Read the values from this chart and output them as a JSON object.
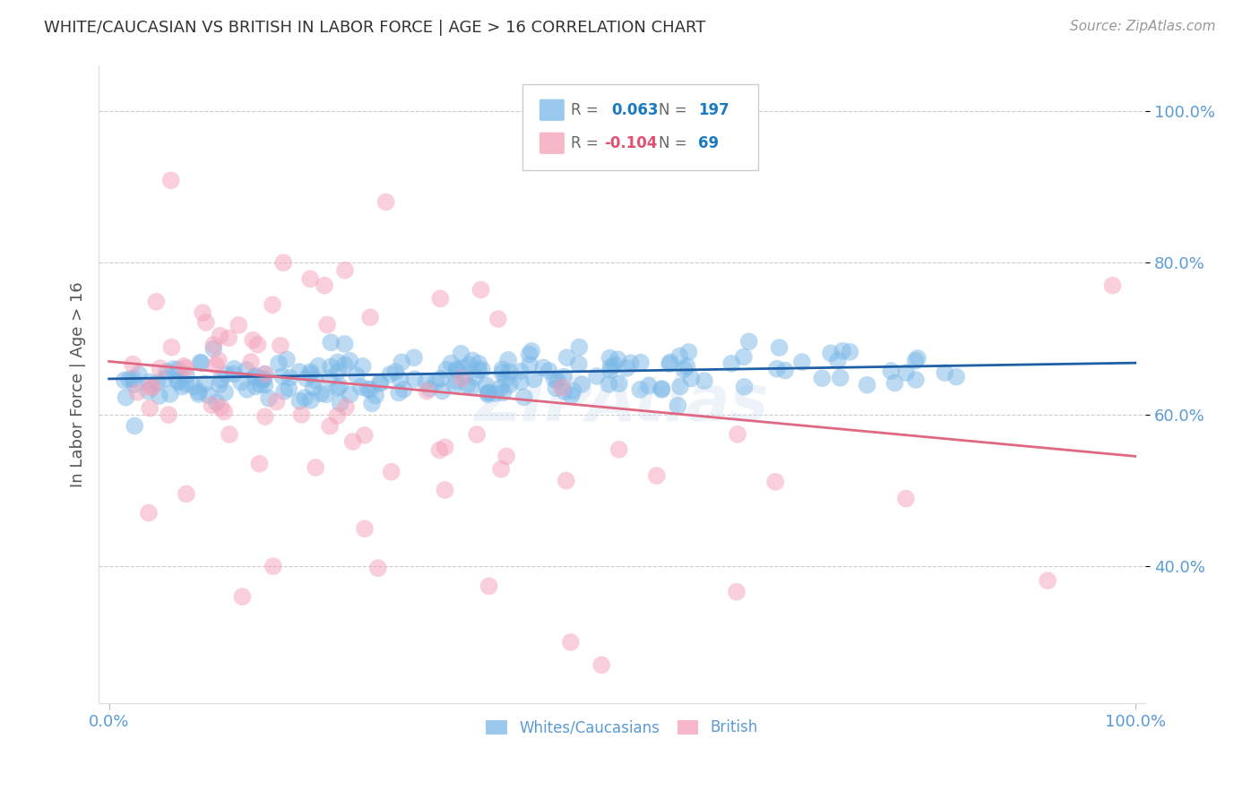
{
  "title": "WHITE/CAUCASIAN VS BRITISH IN LABOR FORCE | AGE > 16 CORRELATION CHART",
  "source": "Source: ZipAtlas.com",
  "ylabel": "In Labor Force | Age > 16",
  "title_color": "#333333",
  "source_color": "#999999",
  "ylabel_color": "#555555",
  "axis_tick_color": "#5B9BD5",
  "background_color": "#ffffff",
  "grid_color": "#cccccc",
  "blue_R": 0.063,
  "blue_N": 197,
  "pink_R": -0.104,
  "pink_N": 69,
  "blue_color": "#7ab8e8",
  "pink_color": "#f4a0b8",
  "blue_line_color": "#1f5fa6",
  "pink_line_color": "#e06882",
  "legend_color_blue": "#1a7abf",
  "legend_color_pink": "#e05070",
  "legend_R_gray": "#666666",
  "xlim": [
    0.0,
    1.0
  ],
  "ylim": [
    0.22,
    1.06
  ],
  "yticks": [
    0.4,
    0.6,
    0.8,
    1.0
  ],
  "ytick_labels": [
    "40.0%",
    "60.0%",
    "80.0%",
    "100.0%"
  ],
  "xtick_labels": [
    "0.0%",
    "100.0%"
  ]
}
